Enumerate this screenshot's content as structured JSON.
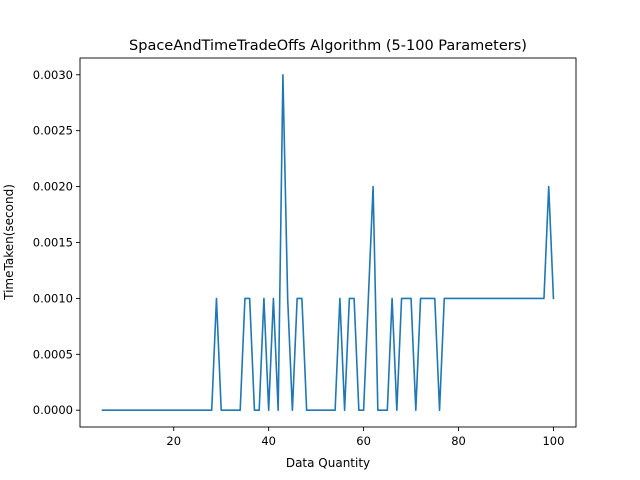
{
  "chart_data": {
    "type": "line",
    "title": "SpaceAndTimeTradeOffs Algorithm (5-100 Parameters)",
    "xlabel": "Data Quantity",
    "ylabel": "TimeTaken(second)",
    "xlim": [
      0.25,
      104.75
    ],
    "ylim": [
      -0.00015,
      0.00315
    ],
    "xticks": [
      20,
      40,
      60,
      80,
      100
    ],
    "xtick_labels": [
      "20",
      "40",
      "60",
      "80",
      "100"
    ],
    "yticks": [
      0,
      0.0005,
      0.001,
      0.0015,
      0.002,
      0.0025,
      0.003
    ],
    "ytick_labels": [
      "0.0000",
      "0.0005",
      "0.0010",
      "0.0015",
      "0.0020",
      "0.0025",
      "0.0030"
    ],
    "grid": false,
    "colors": {
      "line": "#1f77b4"
    },
    "series": [
      {
        "x": [
          5,
          6,
          7,
          8,
          9,
          10,
          11,
          12,
          13,
          14,
          15,
          16,
          17,
          18,
          19,
          20,
          21,
          22,
          23,
          24,
          25,
          26,
          27,
          28,
          29,
          30,
          31,
          32,
          33,
          34,
          35,
          36,
          37,
          38,
          39,
          40,
          41,
          42,
          43,
          44,
          45,
          46,
          47,
          48,
          49,
          50,
          51,
          52,
          53,
          54,
          55,
          56,
          57,
          58,
          59,
          60,
          61,
          62,
          63,
          64,
          65,
          66,
          67,
          68,
          69,
          70,
          71,
          72,
          73,
          74,
          75,
          76,
          77,
          78,
          79,
          80,
          81,
          82,
          83,
          84,
          85,
          86,
          87,
          88,
          89,
          90,
          91,
          92,
          93,
          94,
          95,
          96,
          97,
          98,
          99,
          100
        ],
        "values": [
          0,
          0,
          0,
          0,
          0,
          0,
          0,
          0,
          0,
          0,
          0,
          0,
          0,
          0,
          0,
          0,
          0,
          0,
          0,
          0,
          0,
          0,
          0,
          0,
          0.001,
          0,
          0,
          0,
          0,
          0,
          0.001,
          0.001,
          0,
          0,
          0.001,
          0,
          0.001,
          0,
          0.003,
          0.001,
          0,
          0.001,
          0.001,
          0,
          0,
          0,
          0,
          0,
          0,
          0,
          0.001,
          0,
          0.001,
          0.001,
          0,
          0,
          0.001,
          0.002,
          0,
          0,
          0,
          0.001,
          0,
          0.001,
          0.001,
          0.001,
          0,
          0.001,
          0.001,
          0.001,
          0.001,
          0,
          0.001,
          0.001,
          0.001,
          0.001,
          0.001,
          0.001,
          0.001,
          0.001,
          0.001,
          0.001,
          0.001,
          0.001,
          0.001,
          0.001,
          0.001,
          0.001,
          0.001,
          0.001,
          0.001,
          0.001,
          0.001,
          0.001,
          0.002,
          0.001
        ]
      }
    ]
  }
}
